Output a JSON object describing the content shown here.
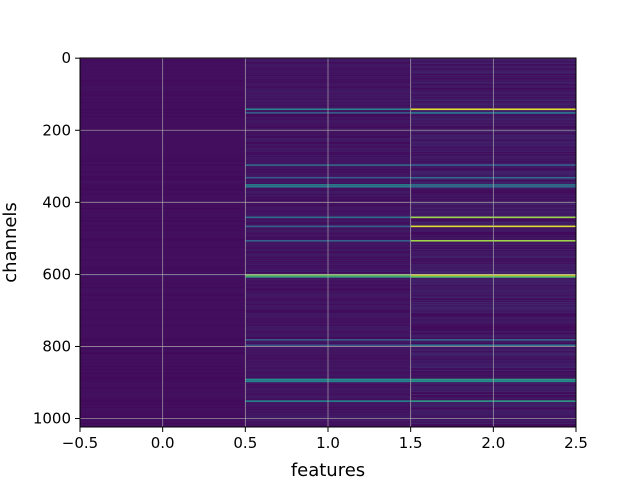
{
  "chart_data": {
    "type": "heatmap",
    "title": "",
    "xlabel": "features",
    "ylabel": "channels",
    "colormap": "viridis",
    "xlim": [
      -0.5,
      2.5
    ],
    "ylim": [
      1023.5,
      -0.5
    ],
    "x_ticks": [
      -0.5,
      0.0,
      0.5,
      1.0,
      1.5,
      2.0,
      2.5
    ],
    "x_tick_labels": [
      "−0.5",
      "0.0",
      "0.5",
      "1.0",
      "1.5",
      "2.0",
      "2.5"
    ],
    "y_ticks": [
      0,
      200,
      400,
      600,
      800,
      1000
    ],
    "y_tick_labels": [
      "0",
      "200",
      "400",
      "600",
      "800",
      "1000"
    ],
    "grid": true,
    "n_rows": 1024,
    "features": [
      0,
      1,
      2
    ],
    "value_range": [
      0.0,
      1.0
    ],
    "background_level": {
      "feature_0": 0.04,
      "feature_1": 0.06,
      "feature_2": 0.07
    },
    "highlighted_channels": [
      {
        "channel": 140,
        "values": [
          0.03,
          0.45,
          0.95
        ]
      },
      {
        "channel": 150,
        "values": [
          0.03,
          0.3,
          0.4
        ]
      },
      {
        "channel": 295,
        "values": [
          0.03,
          0.35,
          0.3
        ]
      },
      {
        "channel": 330,
        "values": [
          0.03,
          0.28,
          0.35
        ]
      },
      {
        "channel": 350,
        "values": [
          0.04,
          0.45,
          0.4
        ]
      },
      {
        "channel": 355,
        "values": [
          0.03,
          0.4,
          0.35
        ]
      },
      {
        "channel": 440,
        "values": [
          0.03,
          0.35,
          0.85
        ]
      },
      {
        "channel": 465,
        "values": [
          0.03,
          0.3,
          0.95
        ]
      },
      {
        "channel": 505,
        "values": [
          0.03,
          0.3,
          0.85
        ]
      },
      {
        "channel": 600,
        "values": [
          0.1,
          0.8,
          0.95
        ]
      },
      {
        "channel": 605,
        "values": [
          0.05,
          0.6,
          0.75
        ]
      },
      {
        "channel": 780,
        "values": [
          0.03,
          0.3,
          0.35
        ]
      },
      {
        "channel": 795,
        "values": [
          0.03,
          0.25,
          0.4
        ]
      },
      {
        "channel": 890,
        "values": [
          0.03,
          0.5,
          0.55
        ]
      },
      {
        "channel": 895,
        "values": [
          0.03,
          0.45,
          0.5
        ]
      },
      {
        "channel": 950,
        "values": [
          0.03,
          0.45,
          0.55
        ]
      }
    ]
  }
}
